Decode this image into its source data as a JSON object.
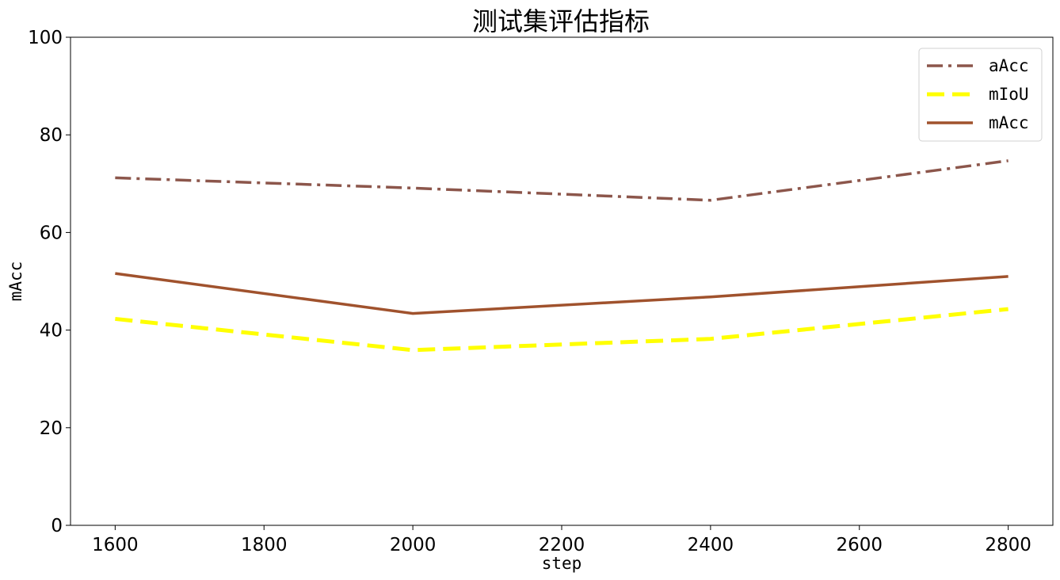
{
  "chart_data": {
    "type": "line",
    "title": "测试集评估指标",
    "xlabel": "step",
    "ylabel": "mAcc",
    "x": [
      1600,
      2000,
      2400,
      2800
    ],
    "xticks": [
      1600,
      1800,
      2000,
      2200,
      2400,
      2600,
      2800
    ],
    "xticklabels": [
      "1600",
      "1800",
      "2000",
      "2200",
      "2400",
      "2600",
      "2800"
    ],
    "xlim": [
      1540,
      2860
    ],
    "yticks": [
      0,
      20,
      40,
      60,
      80,
      100
    ],
    "yticklabels": [
      "0",
      "20",
      "40",
      "60",
      "80",
      "100"
    ],
    "ylim": [
      0,
      100
    ],
    "grid": false,
    "legend_position": "top-right",
    "series": [
      {
        "name": "aAcc",
        "values": [
          71.2,
          69.1,
          66.6,
          74.7
        ],
        "color": "#8c564b",
        "style": "dashdot"
      },
      {
        "name": "mIoU",
        "values": [
          42.3,
          35.9,
          38.2,
          44.3
        ],
        "color": "#ffff00",
        "style": "dashed"
      },
      {
        "name": "mAcc",
        "values": [
          51.6,
          43.4,
          46.8,
          51.0
        ],
        "color": "#a0522d",
        "style": "solid"
      }
    ]
  }
}
